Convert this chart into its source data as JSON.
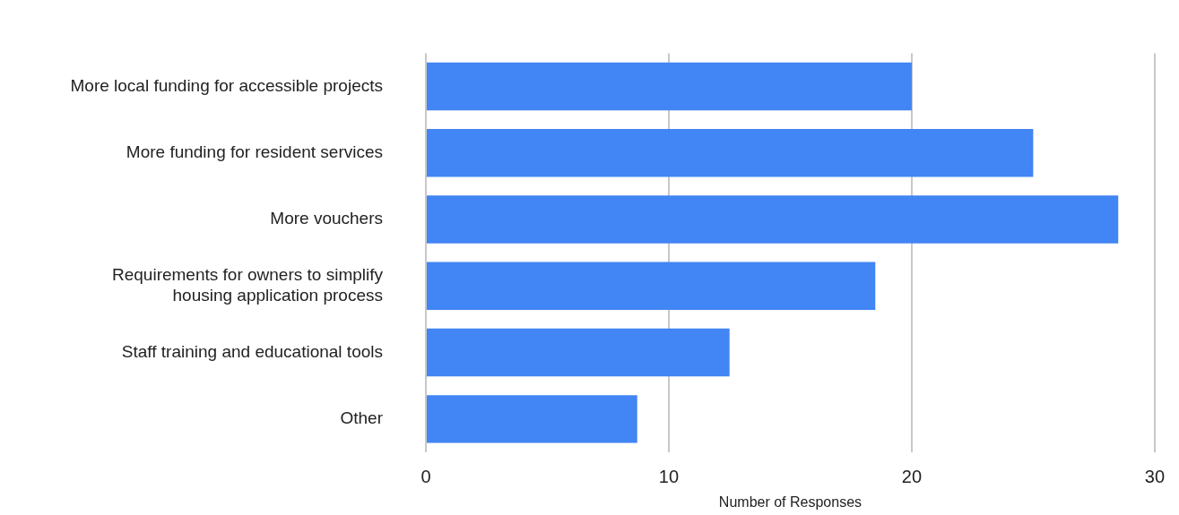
{
  "chart_data": {
    "type": "bar",
    "orientation": "horizontal",
    "xlabel": "Number of Responses",
    "categories": [
      "More local funding for accessible projects",
      "More funding for resident services",
      "More vouchers",
      "Requirements for owners to simplify housing application process",
      "Staff training and educational tools",
      "Other"
    ],
    "values": [
      20,
      25,
      28.5,
      18.5,
      12.5,
      8.7
    ],
    "color": "#4285f4",
    "xlim": [
      0,
      30
    ],
    "xticks": [
      0,
      10,
      20,
      30
    ],
    "grid": "x",
    "legend": false
  }
}
